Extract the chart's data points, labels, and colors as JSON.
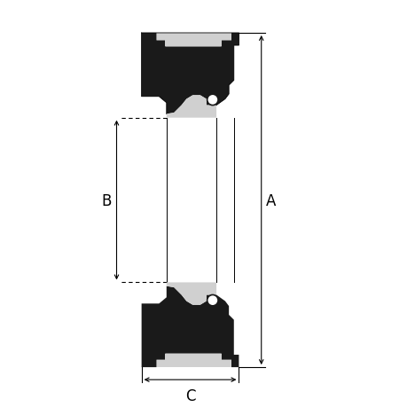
{
  "bg_color": "#ffffff",
  "fill_dark": "#1a1a1a",
  "fill_light": "#d0d0d0",
  "dim_color": "#666666",
  "label_A": "A",
  "label_B": "B",
  "label_C": "C",
  "dim_fontsize": 12,
  "figsize": [
    4.6,
    4.6
  ],
  "dpi": 100,
  "xlim": [
    0.0,
    10.0
  ],
  "ylim": [
    -1.5,
    14.5
  ]
}
